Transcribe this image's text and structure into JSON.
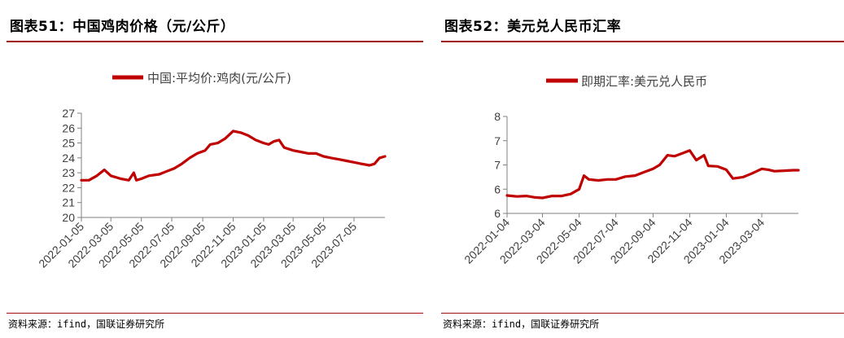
{
  "charts": [
    {
      "title": "图表51：中国鸡肉价格（元/公斤）",
      "source": "资料来源：ifind，国联证券研究所",
      "chart_data": {
        "type": "line",
        "title": "",
        "xlabel": "",
        "ylabel": "",
        "ylim": [
          20,
          27
        ],
        "yticks": [
          "20",
          "21",
          "22",
          "23",
          "24",
          "25",
          "26",
          "27"
        ],
        "xticks": [
          "2022-01-05",
          "2022-03-05",
          "2022-05-05",
          "2022-07-05",
          "2022-09-05",
          "2022-11-05",
          "2023-01-05",
          "2023-03-05",
          "2023-05-05",
          "2023-07-05"
        ],
        "x_range": [
          "2022-01-05",
          "2023-09-05"
        ],
        "legend_position": "top",
        "series": [
          {
            "name": "中国:平均价:鸡肉(元/公斤)",
            "color": "#c00000",
            "points": [
              [
                "2022-01-05",
                22.5
              ],
              [
                "2022-01-20",
                22.5
              ],
              [
                "2022-02-05",
                22.8
              ],
              [
                "2022-02-20",
                23.2
              ],
              [
                "2022-03-05",
                22.8
              ],
              [
                "2022-03-25",
                22.6
              ],
              [
                "2022-04-10",
                22.5
              ],
              [
                "2022-04-20",
                23.0
              ],
              [
                "2022-04-25",
                22.5
              ],
              [
                "2022-05-05",
                22.6
              ],
              [
                "2022-05-20",
                22.8
              ],
              [
                "2022-06-10",
                22.9
              ],
              [
                "2022-06-25",
                23.1
              ],
              [
                "2022-07-10",
                23.3
              ],
              [
                "2022-07-25",
                23.6
              ],
              [
                "2022-08-10",
                24.0
              ],
              [
                "2022-08-25",
                24.3
              ],
              [
                "2022-09-10",
                24.5
              ],
              [
                "2022-09-20",
                24.9
              ],
              [
                "2022-10-05",
                25.0
              ],
              [
                "2022-10-20",
                25.3
              ],
              [
                "2022-11-05",
                25.8
              ],
              [
                "2022-11-20",
                25.7
              ],
              [
                "2022-12-05",
                25.5
              ],
              [
                "2022-12-20",
                25.2
              ],
              [
                "2023-01-05",
                25.0
              ],
              [
                "2023-01-15",
                24.9
              ],
              [
                "2023-01-25",
                25.1
              ],
              [
                "2023-02-05",
                25.2
              ],
              [
                "2023-02-15",
                24.7
              ],
              [
                "2023-03-05",
                24.5
              ],
              [
                "2023-03-20",
                24.4
              ],
              [
                "2023-04-05",
                24.3
              ],
              [
                "2023-04-20",
                24.3
              ],
              [
                "2023-05-05",
                24.1
              ],
              [
                "2023-05-20",
                24.0
              ],
              [
                "2023-06-05",
                23.9
              ],
              [
                "2023-06-20",
                23.8
              ],
              [
                "2023-07-05",
                23.7
              ],
              [
                "2023-07-20",
                23.6
              ],
              [
                "2023-08-05",
                23.5
              ],
              [
                "2023-08-15",
                23.6
              ],
              [
                "2023-08-25",
                24.0
              ],
              [
                "2023-09-05",
                24.1
              ]
            ]
          }
        ]
      }
    },
    {
      "title": "图表52：美元兑人民币汇率",
      "source": "资料来源：ifind，国联证券研究所",
      "chart_data": {
        "type": "line",
        "title": "",
        "xlabel": "",
        "ylabel": "",
        "ylim": [
          6,
          8
        ],
        "yticks": [
          "6",
          "6",
          "7",
          "7",
          "8"
        ],
        "xticks": [
          "2022-01-04",
          "2022-03-04",
          "2022-05-04",
          "2022-07-04",
          "2022-09-04",
          "2022-11-04",
          "2023-01-04",
          "2023-03-04"
        ],
        "x_range": [
          "2022-01-04",
          "2023-05-04"
        ],
        "legend_position": "top",
        "series": [
          {
            "name": "即期汇率:美元兑人民币",
            "color": "#c00000",
            "points": [
              [
                "2022-01-04",
                6.37
              ],
              [
                "2022-01-20",
                6.35
              ],
              [
                "2022-02-05",
                6.36
              ],
              [
                "2022-02-20",
                6.33
              ],
              [
                "2022-03-04",
                6.32
              ],
              [
                "2022-03-20",
                6.36
              ],
              [
                "2022-04-05",
                6.36
              ],
              [
                "2022-04-20",
                6.4
              ],
              [
                "2022-05-04",
                6.5
              ],
              [
                "2022-05-12",
                6.78
              ],
              [
                "2022-05-20",
                6.7
              ],
              [
                "2022-06-05",
                6.68
              ],
              [
                "2022-06-20",
                6.7
              ],
              [
                "2022-07-04",
                6.7
              ],
              [
                "2022-07-20",
                6.76
              ],
              [
                "2022-08-05",
                6.78
              ],
              [
                "2022-08-20",
                6.85
              ],
              [
                "2022-09-04",
                6.92
              ],
              [
                "2022-09-15",
                7.0
              ],
              [
                "2022-09-28",
                7.2
              ],
              [
                "2022-10-10",
                7.18
              ],
              [
                "2022-10-25",
                7.25
              ],
              [
                "2022-11-04",
                7.3
              ],
              [
                "2022-11-15",
                7.1
              ],
              [
                "2022-11-28",
                7.2
              ],
              [
                "2022-12-05",
                6.98
              ],
              [
                "2022-12-20",
                6.97
              ],
              [
                "2023-01-04",
                6.9
              ],
              [
                "2023-01-15",
                6.72
              ],
              [
                "2023-02-01",
                6.75
              ],
              [
                "2023-02-15",
                6.82
              ],
              [
                "2023-03-04",
                6.92
              ],
              [
                "2023-03-15",
                6.9
              ],
              [
                "2023-03-25",
                6.87
              ],
              [
                "2023-04-10",
                6.88
              ],
              [
                "2023-04-25",
                6.89
              ],
              [
                "2023-05-04",
                6.89
              ]
            ]
          }
        ]
      }
    }
  ]
}
